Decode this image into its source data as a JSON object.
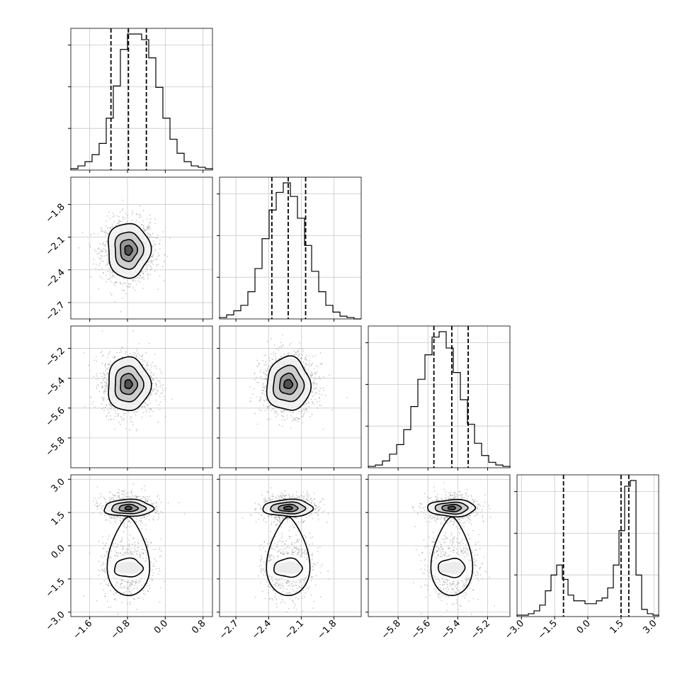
{
  "chart_data": {
    "type": "corner",
    "grid": true,
    "variables": [
      {
        "range": [
          -2.0,
          1.0
        ],
        "ticks": [
          -1.6,
          -0.8,
          0.0,
          0.8
        ],
        "tick_labels": [
          "−1.6",
          "−0.8",
          "0.0",
          "0.8"
        ],
        "quantiles": [
          -1.15,
          -0.78,
          -0.4
        ],
        "hist_bins": 20,
        "hist_counts": [
          1,
          3,
          6,
          11,
          19,
          37,
          60,
          86,
          97,
          97,
          93,
          80,
          59,
          37,
          22,
          12,
          6,
          3,
          2,
          1
        ]
      },
      {
        "range": [
          -2.85,
          -1.55
        ],
        "ticks": [
          -2.7,
          -2.4,
          -2.1,
          -1.8
        ],
        "tick_labels": [
          "−2.7",
          "−2.4",
          "−2.1",
          "−1.8"
        ],
        "quantiles": [
          -2.37,
          -2.22,
          -2.06
        ],
        "hist_bins": 20,
        "hist_counts": [
          1,
          3,
          6,
          10,
          20,
          37,
          59,
          80,
          93,
          100,
          90,
          74,
          54,
          35,
          20,
          10,
          5,
          2,
          1,
          0
        ]
      },
      {
        "range": [
          -6.0,
          -5.05
        ],
        "ticks": [
          -5.8,
          -5.6,
          -5.4,
          -5.2
        ],
        "tick_labels": [
          "−5.8",
          "−5.6",
          "−5.4",
          "−5.2"
        ],
        "quantiles": [
          -5.56,
          -5.44,
          -5.33
        ],
        "hist_bins": 20,
        "hist_counts": [
          1,
          2,
          5,
          10,
          17,
          28,
          45,
          65,
          83,
          96,
          100,
          88,
          70,
          50,
          32,
          18,
          9,
          4,
          2,
          1
        ]
      },
      {
        "range": [
          -3.2,
          3.2
        ],
        "ticks": [
          -3.0,
          -1.5,
          0.0,
          1.5,
          3.0
        ],
        "tick_labels": [
          "−3.0",
          "−1.5",
          "0.0",
          "1.5",
          "3.0"
        ],
        "quantiles": [
          -1.1,
          1.5,
          1.85
        ],
        "hist_bins": 25,
        "hist_counts": [
          1,
          1,
          2,
          4,
          8,
          18,
          29,
          36,
          26,
          15,
          11,
          11,
          9,
          9,
          11,
          13,
          20,
          36,
          60,
          91,
          95,
          29,
          5,
          2,
          1
        ]
      }
    ],
    "pairs": [
      {
        "row": 1,
        "col": 0,
        "center": [
          -0.78,
          -2.22
        ],
        "spread": [
          0.31,
          0.14
        ],
        "levels": [
          [
            0.45,
            0.25
          ],
          [
            0.3,
            0.17
          ],
          [
            0.18,
            0.1
          ],
          [
            0.08,
            0.045
          ]
        ]
      },
      {
        "row": 2,
        "col": 0,
        "center": [
          -0.78,
          -5.44
        ],
        "spread": [
          0.31,
          0.1
        ],
        "levels": [
          [
            0.45,
            0.18
          ],
          [
            0.3,
            0.12
          ],
          [
            0.18,
            0.07
          ],
          [
            0.08,
            0.03
          ]
        ]
      },
      {
        "row": 2,
        "col": 1,
        "center": [
          -2.22,
          -5.44
        ],
        "spread": [
          0.14,
          0.1
        ],
        "levels": [
          [
            0.2,
            0.18
          ],
          [
            0.14,
            0.12
          ],
          [
            0.08,
            0.07
          ],
          [
            0.04,
            0.03
          ]
        ]
      },
      {
        "row": 3,
        "col": 0,
        "center": [
          -0.78,
          1.7
        ],
        "center2": [
          -0.78,
          -1.0
        ],
        "spread": [
          0.31,
          0.5
        ],
        "levels": [
          [
            0.52,
            0.38
          ],
          [
            0.36,
            0.26
          ],
          [
            0.2,
            0.16
          ],
          [
            0.07,
            0.08
          ]
        ],
        "levels2": [
          [
            0.45,
            1.25
          ],
          [
            0.3,
            0.6
          ]
        ]
      },
      {
        "row": 3,
        "col": 1,
        "center": [
          -2.22,
          1.7
        ],
        "center2": [
          -2.22,
          -1.0
        ],
        "spread": [
          0.14,
          0.5
        ],
        "levels": [
          [
            0.23,
            0.38
          ],
          [
            0.16,
            0.26
          ],
          [
            0.09,
            0.16
          ],
          [
            0.04,
            0.08
          ]
        ],
        "levels2": [
          [
            0.2,
            1.25
          ],
          [
            0.13,
            0.6
          ]
        ]
      },
      {
        "row": 3,
        "col": 2,
        "center": [
          -5.44,
          1.7
        ],
        "center2": [
          -5.44,
          -1.0
        ],
        "spread": [
          0.1,
          0.5
        ],
        "levels": [
          [
            0.16,
            0.38
          ],
          [
            0.11,
            0.26
          ],
          [
            0.065,
            0.16
          ],
          [
            0.025,
            0.08
          ]
        ],
        "levels2": [
          [
            0.14,
            1.25
          ],
          [
            0.09,
            0.6
          ]
        ]
      }
    ],
    "xlabel": "",
    "ylabel": "",
    "title": ""
  }
}
